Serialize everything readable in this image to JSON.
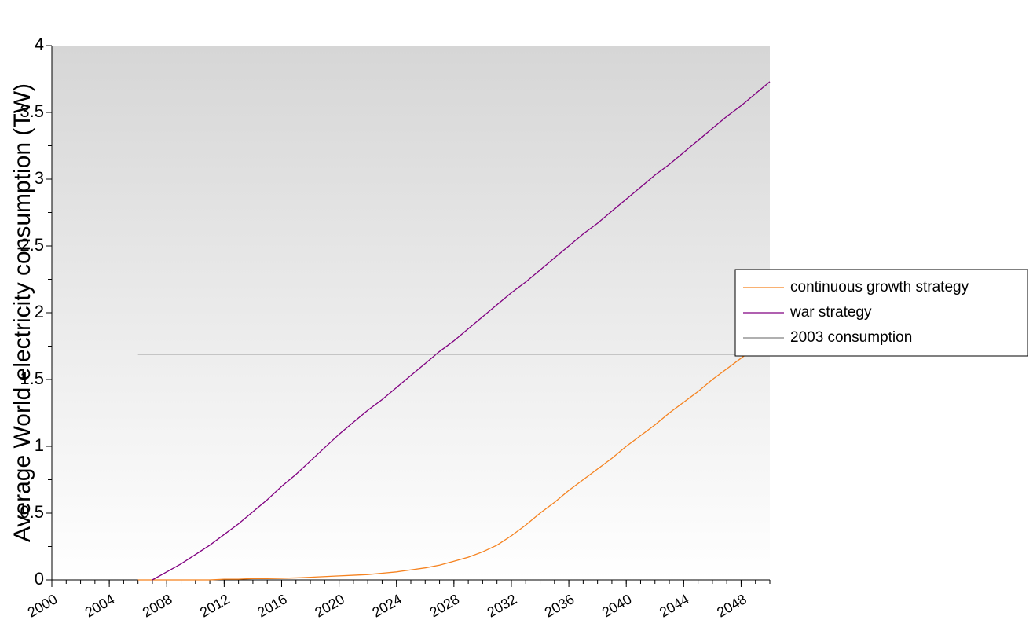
{
  "chart_data": {
    "type": "line",
    "y_label": "Average World electricity consumption  (TW)",
    "x": [
      2006,
      2007,
      2008,
      2009,
      2010,
      2011,
      2012,
      2013,
      2014,
      2015,
      2016,
      2017,
      2018,
      2019,
      2020,
      2021,
      2022,
      2023,
      2024,
      2025,
      2026,
      2027,
      2028,
      2029,
      2030,
      2031,
      2032,
      2033,
      2034,
      2035,
      2036,
      2037,
      2038,
      2039,
      2040,
      2041,
      2042,
      2043,
      2044,
      2045,
      2046,
      2047,
      2048,
      2049,
      2050
    ],
    "series": [
      {
        "name": "continuous growth strategy",
        "color": "#f5821f",
        "values": [
          0,
          0,
          0,
          0,
          0,
          0,
          0.005,
          0.005,
          0.01,
          0.01,
          0.012,
          0.015,
          0.02,
          0.025,
          0.03,
          0.035,
          0.04,
          0.05,
          0.06,
          0.075,
          0.09,
          0.11,
          0.14,
          0.17,
          0.21,
          0.26,
          0.33,
          0.41,
          0.5,
          0.58,
          0.67,
          0.75,
          0.83,
          0.91,
          1.0,
          1.08,
          1.16,
          1.25,
          1.33,
          1.41,
          1.5,
          1.58,
          1.66,
          1.74,
          1.82
        ]
      },
      {
        "name": "war strategy",
        "color": "#800080",
        "values": [
          null,
          0,
          0.06,
          0.12,
          0.19,
          0.26,
          0.34,
          0.42,
          0.51,
          0.6,
          0.7,
          0.79,
          0.89,
          0.99,
          1.09,
          1.18,
          1.27,
          1.35,
          1.44,
          1.53,
          1.62,
          1.71,
          1.79,
          1.88,
          1.97,
          2.06,
          2.15,
          2.23,
          2.32,
          2.41,
          2.5,
          2.59,
          2.67,
          2.76,
          2.85,
          2.94,
          3.03,
          3.11,
          3.2,
          3.29,
          3.38,
          3.47,
          3.55,
          3.64,
          3.73
        ]
      },
      {
        "name": "2003 consumption",
        "color": "#808080",
        "values": [
          1.69,
          1.69,
          1.69,
          1.69,
          1.69,
          1.69,
          1.69,
          1.69,
          1.69,
          1.69,
          1.69,
          1.69,
          1.69,
          1.69,
          1.69,
          1.69,
          1.69,
          1.69,
          1.69,
          1.69,
          1.69,
          1.69,
          1.69,
          1.69,
          1.69,
          1.69,
          1.69,
          1.69,
          1.69,
          1.69,
          1.69,
          1.69,
          1.69,
          1.69,
          1.69,
          1.69,
          1.69,
          1.69,
          1.69,
          1.69,
          1.69,
          1.69,
          1.69,
          1.69,
          1.69
        ]
      }
    ],
    "xlim": [
      2000,
      2050
    ],
    "xticks": [
      2000,
      2004,
      2008,
      2012,
      2016,
      2020,
      2024,
      2028,
      2032,
      2036,
      2040,
      2044,
      2048
    ],
    "x_minor_step": 1,
    "ylim": [
      0,
      4
    ],
    "yticks": [
      0,
      0.5,
      1,
      1.5,
      2,
      2.5,
      3,
      3.5,
      4
    ],
    "y_minor_step": 0.25,
    "legend": "right"
  }
}
